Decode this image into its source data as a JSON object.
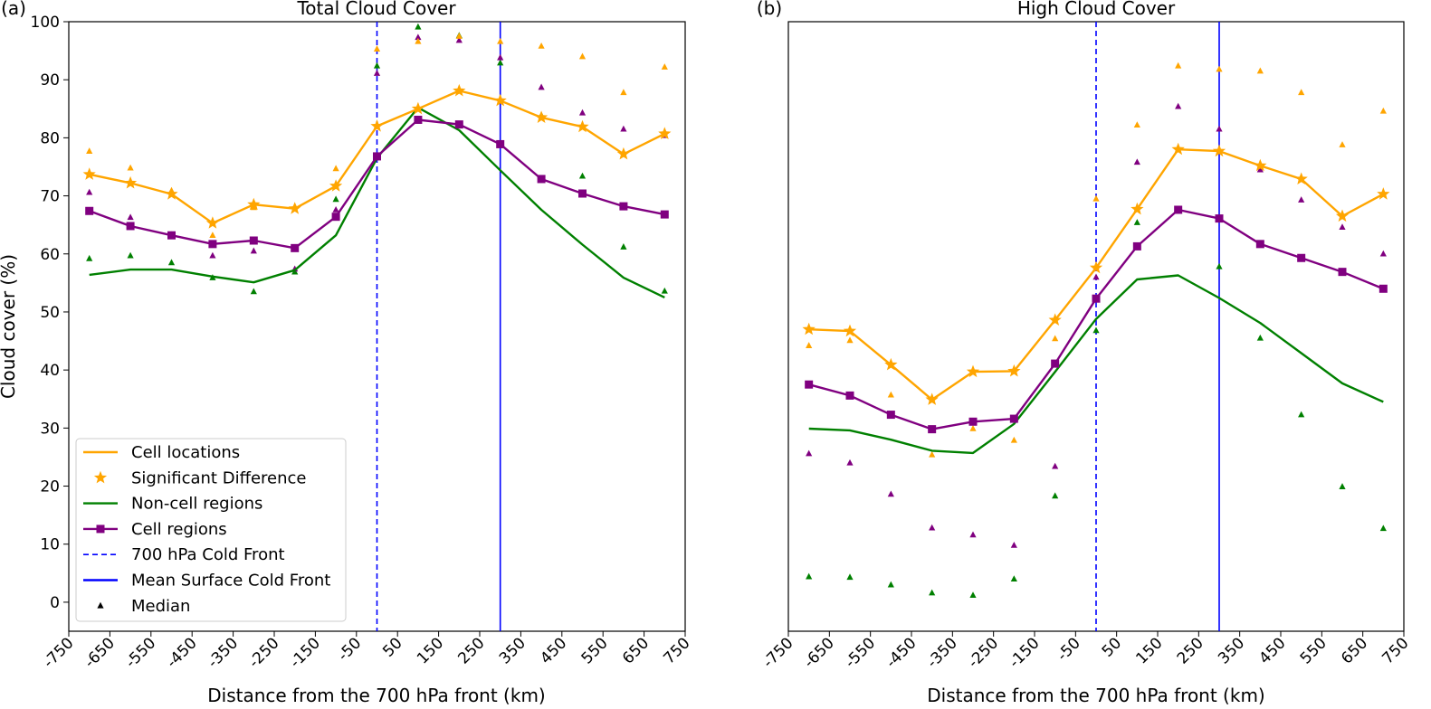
{
  "x_axis_label": "Distance from the 700 hPa front (km)",
  "y_axis_label": "Cloud cover (%)",
  "x_ticks": [
    -750,
    -650,
    -550,
    -450,
    -350,
    -250,
    -150,
    -50,
    50,
    150,
    250,
    350,
    450,
    550,
    650,
    750
  ],
  "y_ticks": [
    0,
    10,
    20,
    30,
    40,
    50,
    60,
    70,
    80,
    90,
    100
  ],
  "colors": {
    "cell_locations": "#FFA500",
    "non_cell": "#008000",
    "cell_regions": "#800080",
    "front": "#0000FF",
    "axis": "#000000"
  },
  "legend": [
    {
      "label": "Cell locations",
      "kind": "line",
      "color": "#FFA500"
    },
    {
      "label": "Significant Difference",
      "kind": "star",
      "color": "#FFA500"
    },
    {
      "label": "Non-cell regions",
      "kind": "line",
      "color": "#008000"
    },
    {
      "label": "Cell regions",
      "kind": "line-square",
      "color": "#800080"
    },
    {
      "label": "700 hPa Cold Front",
      "kind": "dashed",
      "color": "#0000FF"
    },
    {
      "label": "Mean Surface Cold Front",
      "kind": "line",
      "color": "#0000FF"
    },
    {
      "label": "Median",
      "kind": "triangle",
      "color": "#000000"
    }
  ],
  "chart_data": [
    {
      "panel_label": "(a)",
      "type": "line",
      "title": "Total Cloud Cover",
      "xlabel": "Distance from the 700 hPa front (km)",
      "ylabel": "Cloud cover (%)",
      "xlim": [
        -750,
        750
      ],
      "ylim": [
        -5,
        100
      ],
      "show_y_ticks": true,
      "legend_position": "lower-left",
      "x": [
        -700,
        -600,
        -500,
        -400,
        -300,
        -200,
        -100,
        0,
        100,
        200,
        300,
        400,
        500,
        600,
        700
      ],
      "series": [
        {
          "name": "Non-cell regions",
          "color": "#008000",
          "marker": "none",
          "values": [
            56.4,
            57.3,
            57.3,
            56.1,
            55.1,
            57.2,
            63.2,
            76.5,
            85.2,
            81.3,
            74.4,
            67.6,
            61.6,
            55.9,
            52.5
          ]
        },
        {
          "name": "Cell regions",
          "color": "#800080",
          "marker": "square",
          "values": [
            67.4,
            64.8,
            63.2,
            61.7,
            62.3,
            61.0,
            66.4,
            76.8,
            83.1,
            82.3,
            78.9,
            72.9,
            70.4,
            68.2,
            66.8
          ]
        },
        {
          "name": "Cell locations",
          "color": "#FFA500",
          "marker": "star",
          "values": [
            73.7,
            72.2,
            70.3,
            65.3,
            68.5,
            67.8,
            71.7,
            82.0,
            85.0,
            88.1,
            86.4,
            83.5,
            81.9,
            77.2,
            80.7
          ]
        }
      ],
      "medians": [
        {
          "name": "Non-cell regions",
          "color": "#008000",
          "values": [
            59.2,
            59.7,
            58.5,
            55.9,
            53.5,
            56.9,
            69.4,
            92.4,
            99.1,
            97.6,
            92.9,
            83.9,
            73.4,
            61.2,
            53.6
          ]
        },
        {
          "name": "Cell regions",
          "color": "#800080",
          "values": [
            70.6,
            66.3,
            63.3,
            59.7,
            60.5,
            57.4,
            67.6,
            91.1,
            97.3,
            96.8,
            93.8,
            88.7,
            84.3,
            81.5,
            80.4
          ]
        },
        {
          "name": "Cell locations",
          "color": "#FFA500",
          "values": [
            77.7,
            74.8,
            70.9,
            63.2,
            68.0,
            68.2,
            74.7,
            95.3,
            96.6,
            97.5,
            96.6,
            95.8,
            94.0,
            87.8,
            92.2
          ]
        }
      ],
      "fronts": [
        {
          "name": "700 hPa Cold Front",
          "x": 0,
          "style": "dashed",
          "color": "#0000FF"
        },
        {
          "name": "Mean Surface Cold Front",
          "x": 300,
          "style": "solid",
          "color": "#0000FF"
        }
      ]
    },
    {
      "panel_label": "(b)",
      "type": "line",
      "title": "High Cloud Cover",
      "xlabel": "Distance from the 700 hPa front (km)",
      "ylabel": "",
      "xlim": [
        -750,
        750
      ],
      "ylim": [
        -5,
        100
      ],
      "show_y_ticks": false,
      "legend_position": "none",
      "x": [
        -700,
        -600,
        -500,
        -400,
        -300,
        -200,
        -100,
        0,
        100,
        200,
        300,
        400,
        500,
        600,
        700
      ],
      "series": [
        {
          "name": "Non-cell regions",
          "color": "#008000",
          "marker": "none",
          "values": [
            29.9,
            29.6,
            28.0,
            26.1,
            25.7,
            30.7,
            39.7,
            48.8,
            55.6,
            56.3,
            52.4,
            48.1,
            42.9,
            37.7,
            34.5
          ]
        },
        {
          "name": "Cell regions",
          "color": "#800080",
          "marker": "square",
          "values": [
            37.5,
            35.6,
            32.3,
            29.8,
            31.1,
            31.6,
            41.1,
            52.3,
            61.3,
            67.6,
            66.1,
            61.7,
            59.3,
            56.9,
            54.0
          ]
        },
        {
          "name": "Cell locations",
          "color": "#FFA500",
          "marker": "star",
          "values": [
            47.0,
            46.7,
            40.9,
            34.9,
            39.7,
            39.8,
            48.6,
            57.6,
            67.7,
            78.0,
            77.7,
            75.2,
            72.9,
            66.5,
            70.3
          ]
        }
      ],
      "medians": [
        {
          "name": "Non-cell regions",
          "color": "#008000",
          "values": [
            4.4,
            4.3,
            3.0,
            1.6,
            1.2,
            4.0,
            18.3,
            46.8,
            65.4,
            67.6,
            57.8,
            45.5,
            32.3,
            19.9,
            12.7
          ]
        },
        {
          "name": "Cell regions",
          "color": "#800080",
          "values": [
            25.6,
            24.0,
            18.6,
            12.8,
            11.6,
            9.8,
            23.4,
            56.0,
            75.8,
            85.4,
            81.5,
            74.5,
            69.3,
            64.6,
            60.0
          ]
        },
        {
          "name": "Cell locations",
          "color": "#FFA500",
          "values": [
            44.2,
            45.1,
            35.7,
            25.4,
            29.9,
            27.9,
            45.4,
            69.5,
            82.2,
            92.4,
            91.8,
            91.5,
            87.8,
            78.8,
            84.6
          ]
        }
      ],
      "fronts": [
        {
          "name": "700 hPa Cold Front",
          "x": 0,
          "style": "dashed",
          "color": "#0000FF"
        },
        {
          "name": "Mean Surface Cold Front",
          "x": 300,
          "style": "solid",
          "color": "#0000FF"
        }
      ]
    }
  ]
}
